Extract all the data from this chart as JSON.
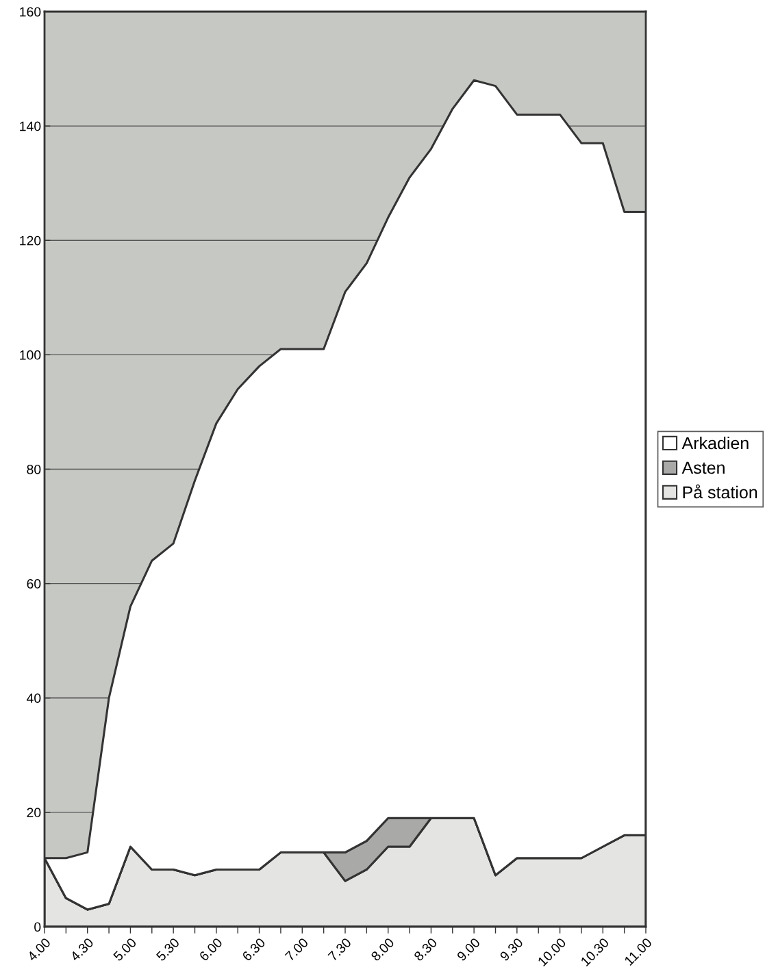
{
  "chart_data": {
    "type": "area",
    "stacked": true,
    "categories": [
      "4.00",
      null,
      "4.30",
      null,
      "5.00",
      null,
      "5.30",
      null,
      "6.00",
      null,
      "6.30",
      null,
      "7.00",
      null,
      "7.30",
      null,
      "8.00",
      null,
      "8.30",
      null,
      "9.00",
      null,
      "9.30",
      null,
      "10.00",
      null,
      "10.30",
      null,
      "11.00"
    ],
    "series": [
      {
        "name": "På station",
        "color": "#e4e4e2",
        "values": [
          12,
          5,
          3,
          4,
          14,
          10,
          10,
          9,
          10,
          10,
          10,
          13,
          13,
          13,
          8,
          10,
          14,
          14,
          19,
          19,
          19,
          9,
          12,
          12,
          12,
          12,
          14,
          16,
          16
        ]
      },
      {
        "name": "Asten",
        "color": "#a9aaa8",
        "values": [
          0,
          0,
          0,
          0,
          0,
          0,
          0,
          0,
          0,
          0,
          0,
          0,
          0,
          0,
          5,
          5,
          5,
          5,
          0,
          0,
          0,
          0,
          0,
          0,
          0,
          0,
          0,
          0,
          0
        ]
      },
      {
        "name": "Arkadien",
        "color": "#ffffff",
        "values": [
          0,
          7,
          10,
          36,
          42,
          54,
          57,
          69,
          78,
          84,
          88,
          88,
          88,
          88,
          98,
          101,
          105,
          112,
          117,
          124,
          129,
          138,
          130,
          130,
          130,
          125,
          123,
          109,
          109
        ]
      }
    ],
    "ylim": [
      0,
      160
    ],
    "yticks": [
      0,
      20,
      40,
      60,
      80,
      100,
      120,
      140,
      160
    ],
    "grid": "y",
    "legend": "right"
  }
}
